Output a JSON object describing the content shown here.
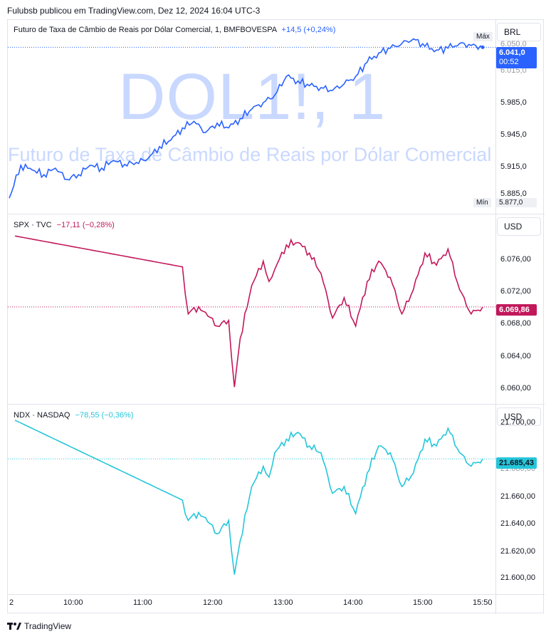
{
  "header": {
    "publisher_line": "Fulubsb publicou em TradingView.com, Dez 12, 2024 16:04 UTC-3"
  },
  "footer": {
    "brand": "TradingView"
  },
  "colors": {
    "dol": "#2962ff",
    "spx": "#c2185b",
    "ndx": "#26c6da"
  },
  "watermark": {
    "symbol": "DOL1!, 1",
    "description": "Futuro de Taxa de Câmbio de Reais por Dólar Comercial"
  },
  "time_axis": {
    "labels": [
      "2",
      "10:00",
      "11:00",
      "12:00",
      "13:00",
      "14:00",
      "15:00",
      "15:50"
    ]
  },
  "panes": [
    {
      "legend_name": "Futuro de Taxa de Câmbio de Reais por Dólar Comercial, 1, BMFBOVESPA",
      "legend_change": "+14,5 (+0,24%)",
      "currency": "BRL",
      "ticks": [
        "6.050,0",
        "6.015,0",
        "5.985,0",
        "5.945,0",
        "5.915,0",
        "5.885,0"
      ],
      "price_label": "6.041,0",
      "countdown": "00:52",
      "max_label": "Máx",
      "min_label": "Mín",
      "min_value": "5.877,0"
    },
    {
      "legend_name": "SPX · TVC",
      "legend_change": "−17,11 (−0,28%)",
      "currency": "USD",
      "ticks": [
        "6.076,00",
        "6.072,00",
        "6.068,00",
        "6.064,00",
        "6.060,00"
      ],
      "price_label": "6.069,86"
    },
    {
      "legend_name": "NDX · NASDAQ",
      "legend_change": "−78,55 (−0,36%)",
      "currency": "USD",
      "ticks": [
        "21.700,00",
        "21.680,00",
        "21.660,00",
        "21.640,00",
        "21.620,00",
        "21.600,00"
      ],
      "price_label": "21.685,43"
    }
  ],
  "chart_data": [
    {
      "type": "line",
      "symbol": "DOL1!",
      "ylim": [
        5877,
        6055
      ],
      "last": 6041.0,
      "x": [
        "09:00",
        "09:10",
        "09:20",
        "09:30",
        "09:40",
        "09:50",
        "10:00",
        "10:10",
        "10:20",
        "10:30",
        "10:40",
        "10:50",
        "11:00",
        "11:10",
        "11:20",
        "11:30",
        "11:40",
        "11:50",
        "12:00",
        "12:10",
        "12:20",
        "12:30",
        "12:40",
        "12:50",
        "13:00",
        "13:10",
        "13:20",
        "13:30",
        "13:40",
        "13:50",
        "14:00",
        "14:10",
        "14:20",
        "14:30",
        "14:40",
        "14:50",
        "15:00",
        "15:10",
        "15:20",
        "15:30",
        "15:40",
        "15:50"
      ],
      "y": [
        5880,
        5915,
        5910,
        5905,
        5912,
        5900,
        5905,
        5915,
        5912,
        5920,
        5916,
        5918,
        5922,
        5935,
        5942,
        5955,
        5962,
        5950,
        5960,
        5955,
        5965,
        5975,
        5982,
        5990,
        6010,
        6005,
        6000,
        5998,
        5995,
        6002,
        6010,
        6025,
        6035,
        6040,
        6045,
        6050,
        6042,
        6038,
        6040,
        6045,
        6043,
        6041
      ]
    },
    {
      "type": "line",
      "symbol": "SPX",
      "ylim": [
        6059.5,
        6079.5
      ],
      "last": 6069.86,
      "x": [
        "09:05",
        "11:30",
        "11:35",
        "11:40",
        "11:50",
        "12:00",
        "12:10",
        "12:15",
        "12:20",
        "12:30",
        "12:40",
        "12:45",
        "12:50",
        "13:00",
        "13:10",
        "13:20",
        "13:30",
        "13:40",
        "13:50",
        "14:00",
        "14:10",
        "14:20",
        "14:30",
        "14:40",
        "14:50",
        "15:00",
        "15:10",
        "15:20",
        "15:30",
        "15:40",
        "15:50"
      ],
      "y": [
        6078.6,
        6074.8,
        6069.0,
        6069.8,
        6069.2,
        6067.5,
        6068.2,
        6060.0,
        6066.0,
        6072.5,
        6075.5,
        6073.0,
        6074.5,
        6077.5,
        6077.8,
        6076.5,
        6074.0,
        6068.5,
        6071.0,
        6067.5,
        6073.0,
        6075.5,
        6073.5,
        6069.0,
        6072.0,
        6076.5,
        6075.0,
        6077.0,
        6072.0,
        6069.0,
        6069.86
      ]
    },
    {
      "type": "line",
      "symbol": "NDX",
      "ylim": [
        21595,
        21715
      ],
      "last": 21685.43,
      "x": [
        "09:05",
        "11:30",
        "11:35",
        "11:40",
        "11:50",
        "12:00",
        "12:10",
        "12:15",
        "12:20",
        "12:30",
        "12:40",
        "12:45",
        "12:50",
        "13:00",
        "13:10",
        "13:20",
        "13:30",
        "13:40",
        "13:50",
        "14:00",
        "14:10",
        "14:20",
        "14:30",
        "14:40",
        "14:50",
        "15:00",
        "15:10",
        "15:20",
        "15:30",
        "15:40",
        "15:50"
      ],
      "y": [
        21714,
        21655,
        21640,
        21645,
        21642,
        21630,
        21640,
        21600,
        21625,
        21665,
        21680,
        21672,
        21690,
        21700,
        21705,
        21695,
        21690,
        21660,
        21665,
        21645,
        21675,
        21695,
        21690,
        21665,
        21675,
        21700,
        21695,
        21708,
        21690,
        21680,
        21685.43
      ]
    }
  ]
}
